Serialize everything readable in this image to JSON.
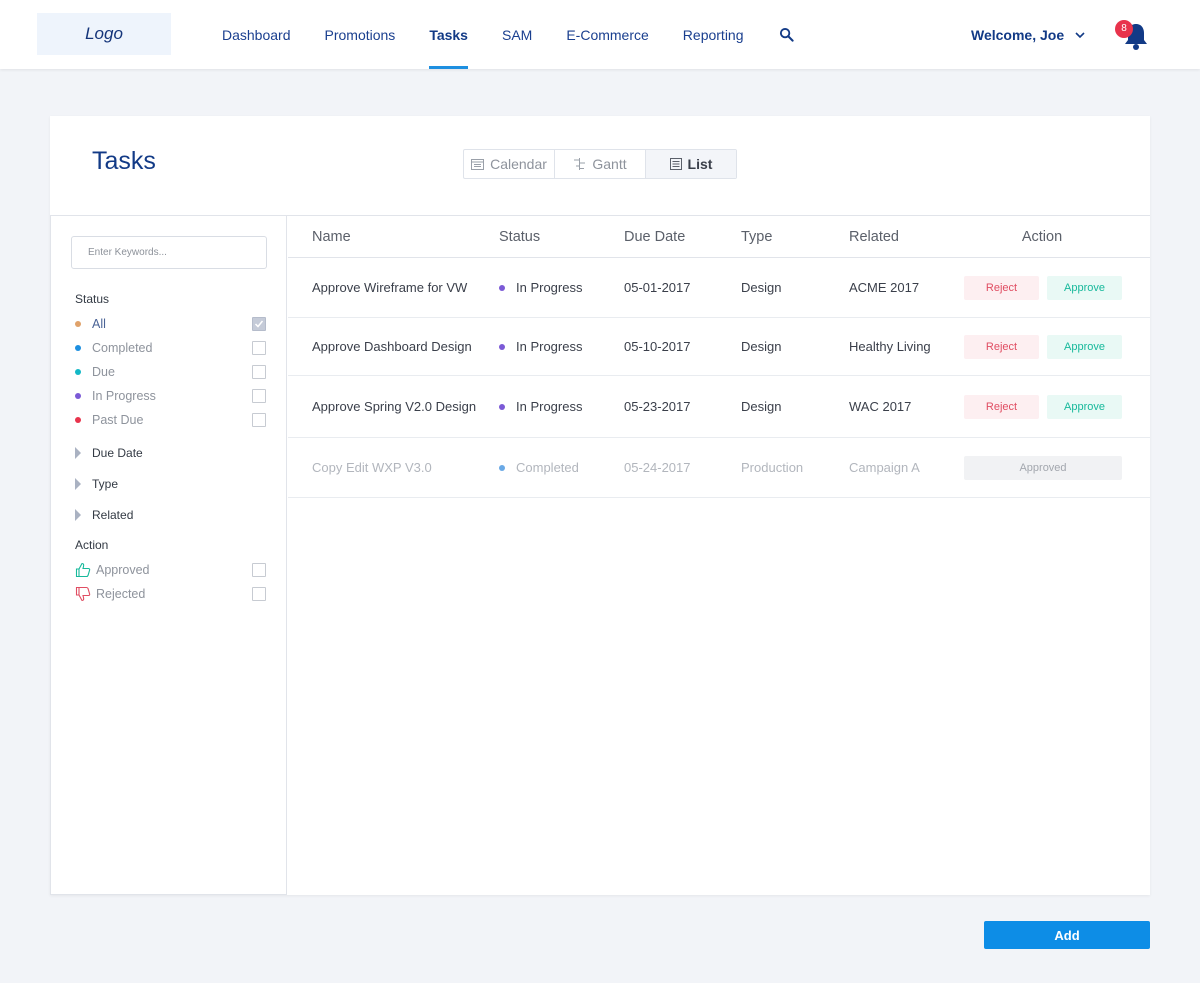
{
  "header": {
    "logo": "Logo",
    "nav": [
      "Dashboard",
      "Promotions",
      "Tasks",
      "SAM",
      "E-Commerce",
      "Reporting"
    ],
    "active_nav": "Tasks",
    "welcome": "Welcome, Joe",
    "notification_count": "8"
  },
  "page": {
    "title": "Tasks",
    "views": {
      "calendar": "Calendar",
      "gantt": "Gantt",
      "list": "List"
    },
    "active_view": "List"
  },
  "filters": {
    "keyword_placeholder": "Enter Keywords...",
    "status_label": "Status",
    "status_items": [
      {
        "label": "All",
        "color": "#e0a26a",
        "checked": true
      },
      {
        "label": "Completed",
        "color": "#1d8fe0",
        "checked": false
      },
      {
        "label": "Due",
        "color": "#13b8c6",
        "checked": false
      },
      {
        "label": "In Progress",
        "color": "#7b5ad6",
        "checked": false
      },
      {
        "label": "Past Due",
        "color": "#e8334c",
        "checked": false
      }
    ],
    "expandable": [
      "Due Date",
      "Type",
      "Related"
    ],
    "action_label": "Action",
    "action_items": [
      {
        "label": "Approved",
        "icon": "thumbs-up-icon",
        "color": "#17b99b"
      },
      {
        "label": "Rejected",
        "icon": "thumbs-down-icon",
        "color": "#e04d62"
      }
    ]
  },
  "table": {
    "columns": [
      "Name",
      "Status",
      "Due Date",
      "Type",
      "Related",
      "Action"
    ],
    "rows": [
      {
        "name": "Approve Wireframe for VW",
        "status": "In Progress",
        "status_color": "#7b5ad6",
        "due": "05-01-2017",
        "type": "Design",
        "related": "ACME 2017",
        "reject": "Reject",
        "approve": "Approve"
      },
      {
        "name": "Approve Dashboard Design",
        "status": "In Progress",
        "status_color": "#7b5ad6",
        "due": "05-10-2017",
        "type": "Design",
        "related": "Healthy Living",
        "reject": "Reject",
        "approve": "Approve"
      },
      {
        "name": "Approve Spring V2.0 Design",
        "status": "In Progress",
        "status_color": "#7b5ad6",
        "due": "05-23-2017",
        "type": "Design",
        "related": "WAC 2017",
        "reject": "Reject",
        "approve": "Approve"
      },
      {
        "name": "Copy Edit WXP V3.0",
        "status": "Completed",
        "status_color": "#6aa9e6",
        "due": "05-24-2017",
        "type": "Production",
        "related": "Campaign A",
        "approved": "Approved"
      }
    ]
  },
  "add_button": "Add"
}
